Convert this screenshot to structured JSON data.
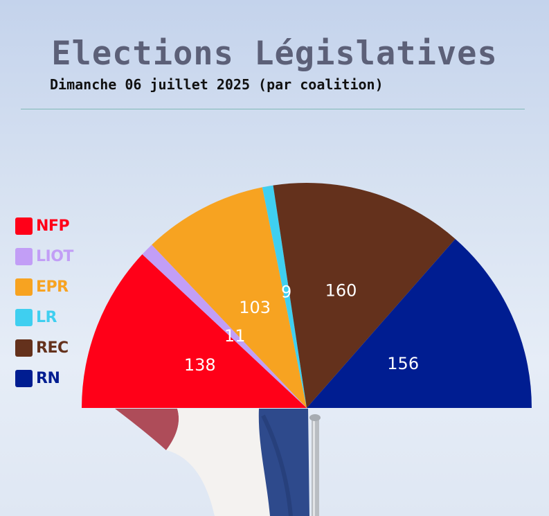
{
  "title": "Elections Législatives",
  "subtitle": "Dimanche 06 juillet 2025 (par coalition)",
  "chart_data": {
    "type": "pie",
    "subtype": "hemicycle",
    "series": [
      {
        "label": "NFP",
        "value": 138,
        "color": "#ff0018"
      },
      {
        "label": "LIOT",
        "value": 11,
        "color": "#c29ef6"
      },
      {
        "label": "EPR",
        "value": 103,
        "color": "#f7a321"
      },
      {
        "label": "LR",
        "value": 9,
        "color": "#3fcff0"
      },
      {
        "label": "REC",
        "value": 160,
        "color": "#64311c"
      },
      {
        "label": "RN",
        "value": 156,
        "color": "#001d91"
      }
    ],
    "legend_position": "left"
  }
}
